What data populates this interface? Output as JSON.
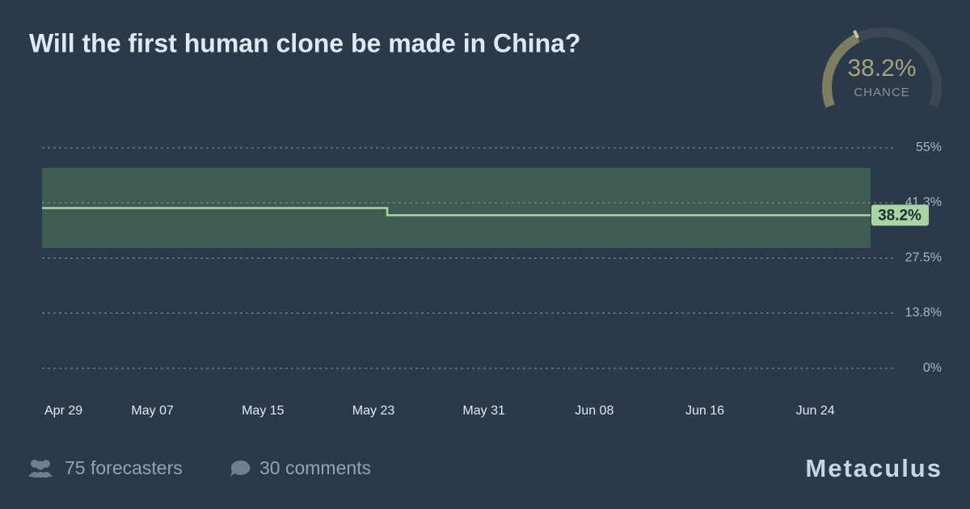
{
  "chart_data": {
    "type": "step",
    "title": "Will the first human clone be made in China?",
    "x": [
      "Apr 29",
      "May 24",
      "Jun 28"
    ],
    "series": [
      {
        "color": "#a8d5a2",
        "values": [
          40,
          38.2,
          38.2
        ],
        "value_labels": [
          null,
          null,
          "38.2%"
        ]
      }
    ],
    "band": {
      "upper": 50,
      "lower": 30,
      "color": "#3f5c52"
    },
    "xlim": [
      "Apr 29",
      "Jun 28"
    ],
    "xticks": [
      "Apr 29",
      "May 07",
      "May 15",
      "May 23",
      "May 31",
      "Jun 08",
      "Jun 16",
      "Jun 24"
    ],
    "ylim": [
      0,
      55
    ],
    "yticks": [
      {
        "value": 0,
        "label": "0%"
      },
      {
        "value": 13.8,
        "label": "13.8%"
      },
      {
        "value": 27.5,
        "label": "27.5%"
      },
      {
        "value": 41.3,
        "label": "41.3%"
      },
      {
        "value": 55,
        "label": "55%"
      }
    ],
    "grid": true,
    "gauge": {
      "value": 38.2,
      "label": "38.2%",
      "caption": "CHANCE",
      "color": "#8f8b62"
    }
  },
  "footer": {
    "forecasters": "75 forecasters",
    "comments": "30 comments",
    "brand": "Metaculus"
  }
}
